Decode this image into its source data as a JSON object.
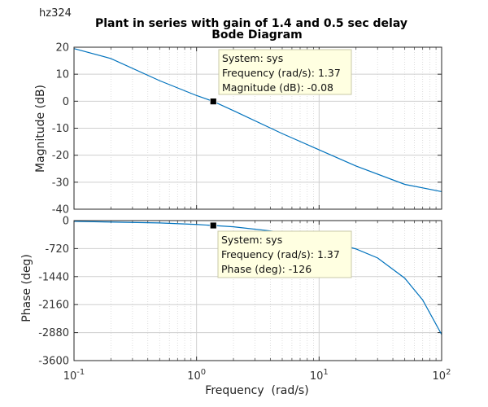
{
  "corner_label": "hz324",
  "chart_data": {
    "type": "line",
    "title": "Plant in series with gain of 1.4 and 0.5 sec delay",
    "subtitle": "Bode Diagram",
    "xlabel": "Frequency  (rad/s)",
    "xscale": "log",
    "xlim": [
      0.1,
      100
    ],
    "x_ticks": [
      {
        "base": "10",
        "exp": "-1"
      },
      {
        "base": "10",
        "exp": "0"
      },
      {
        "base": "10",
        "exp": "1"
      },
      {
        "base": "10",
        "exp": "2"
      }
    ],
    "grid": true,
    "line_color": "#0072bd",
    "magnitude": {
      "ylabel": "Magnitude (dB)",
      "ylim": [
        -40,
        20
      ],
      "yticks": [
        "20",
        "10",
        "0",
        "-10",
        "-20",
        "-30",
        "-40"
      ],
      "x": [
        0.1,
        0.2,
        0.5,
        1,
        1.37,
        2,
        5,
        10,
        20,
        50,
        100
      ],
      "y": [
        19.5,
        15.8,
        7.6,
        2.1,
        -0.08,
        -3.5,
        -12.0,
        -18.0,
        -24.0,
        -30.8,
        -33.5
      ]
    },
    "phase": {
      "ylabel": "Phase (deg)",
      "ylim": [
        -3600,
        0
      ],
      "yticks": [
        "0",
        "-720",
        "-1440",
        "-2160",
        "-2880",
        "-3600"
      ],
      "x": [
        0.1,
        0.5,
        1,
        1.37,
        2,
        5,
        10,
        20,
        30,
        50,
        70,
        100
      ],
      "y": [
        -20,
        -60,
        -100,
        -126,
        -160,
        -300,
        -460,
        -730,
        -960,
        -1480,
        -2040,
        -2930
      ]
    },
    "datatips": [
      {
        "panel": "magnitude",
        "x": 1.37,
        "y": -0.08,
        "lines": [
          "System: sys",
          "Frequency (rad/s): 1.37",
          "Magnitude (dB): -0.08"
        ]
      },
      {
        "panel": "phase",
        "x": 1.37,
        "y": -126,
        "lines": [
          "System: sys",
          "Frequency (rad/s): 1.37",
          "Phase (deg): -126"
        ]
      }
    ]
  }
}
